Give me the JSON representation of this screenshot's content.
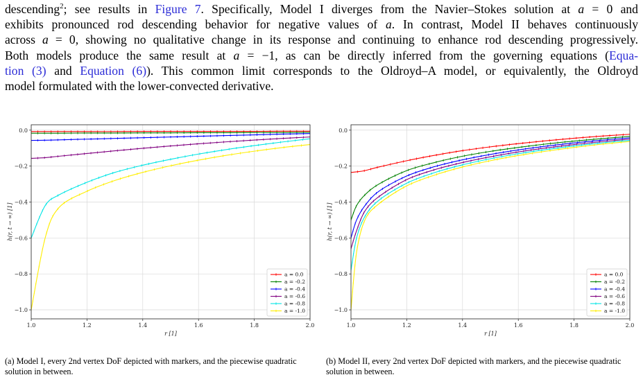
{
  "paragraph": {
    "lines": [
      [
        {
          "t": "descending"
        },
        {
          "t": "2",
          "sup": true
        },
        {
          "t": "; see results in "
        },
        {
          "t": "Figure 7",
          "link": true
        },
        {
          "t": ". Specifically, Model I diverges from the Navier–Stokes solution at "
        },
        {
          "t": "a",
          "math": true
        },
        {
          "t": " = 0 and"
        }
      ],
      [
        {
          "t": "exhibits pronounced rod descending behavior for negative values of "
        },
        {
          "t": "a",
          "math": true
        },
        {
          "t": ". In contrast, Model II behaves continuously"
        }
      ],
      [
        {
          "t": "across "
        },
        {
          "t": "a",
          "math": true
        },
        {
          "t": " = 0, showing no qualitative change in its response and continuing to enhance rod descending progressively."
        }
      ],
      [
        {
          "t": "Both models produce the same result at "
        },
        {
          "t": "a",
          "math": true
        },
        {
          "t": " = −1, as can be directly inferred from the governing equations ("
        },
        {
          "t": "Equa-",
          "link": true
        }
      ],
      [
        {
          "t": "tion (3)",
          "link": true
        },
        {
          "t": " and "
        },
        {
          "t": "Equation (6)",
          "link": true
        },
        {
          "t": "). This common limit corresponds to the Oldroyd–A model, or equivalently, the Oldroyd"
        }
      ],
      [
        {
          "t": "model formulated with the lower-convected derivative."
        }
      ]
    ]
  },
  "chart_data": [
    {
      "type": "line",
      "panel": "a",
      "title": "",
      "xlabel": "r [1]",
      "ylabel": "h(r, t → ∞) [1]",
      "xlim": [
        1.0,
        2.0
      ],
      "ylim": [
        -1.05,
        0.03
      ],
      "xticks": [
        "1.0",
        "1.2",
        "1.4",
        "1.6",
        "1.8",
        "2.0"
      ],
      "yticks": [
        "0.0",
        "−0.2",
        "−0.4",
        "−0.6",
        "−0.8",
        "−1.0"
      ],
      "grid": true,
      "legend": "bottom-right",
      "x": [
        1.0,
        1.05,
        1.1,
        1.2,
        1.3,
        1.4,
        1.5,
        1.6,
        1.7,
        1.8,
        1.9,
        2.0
      ],
      "series": [
        {
          "name": "a = 0.0",
          "color": "#ff0000",
          "values": [
            -0.008,
            -0.008,
            -0.008,
            -0.008,
            -0.008,
            -0.007,
            -0.007,
            -0.007,
            -0.007,
            -0.007,
            -0.006,
            -0.006
          ]
        },
        {
          "name": "a = -0.2",
          "color": "#008000",
          "values": [
            -0.017,
            -0.017,
            -0.017,
            -0.016,
            -0.016,
            -0.015,
            -0.015,
            -0.014,
            -0.014,
            -0.013,
            -0.013,
            -0.012
          ]
        },
        {
          "name": "a = -0.4",
          "color": "#0000ff",
          "values": [
            -0.057,
            -0.056,
            -0.054,
            -0.05,
            -0.046,
            -0.042,
            -0.038,
            -0.034,
            -0.03,
            -0.026,
            -0.022,
            -0.019
          ]
        },
        {
          "name": "a = -0.6",
          "color": "#800080",
          "values": [
            -0.157,
            -0.153,
            -0.145,
            -0.13,
            -0.115,
            -0.101,
            -0.088,
            -0.076,
            -0.065,
            -0.055,
            -0.046,
            -0.038
          ]
        },
        {
          "name": "a = -0.8",
          "color": "#00e5e5",
          "values": [
            -0.6,
            -0.42,
            -0.36,
            -0.29,
            -0.235,
            -0.195,
            -0.162,
            -0.133,
            -0.108,
            -0.086,
            -0.066,
            -0.048
          ]
        },
        {
          "name": "a = -1.0",
          "color": "#ffee00",
          "values": [
            -1.0,
            -0.6,
            -0.43,
            -0.34,
            -0.28,
            -0.235,
            -0.198,
            -0.167,
            -0.14,
            -0.117,
            -0.097,
            -0.08
          ]
        }
      ]
    },
    {
      "type": "line",
      "panel": "b",
      "title": "",
      "xlabel": "r [1]",
      "ylabel": "h(r, t → ∞) [1]",
      "xlim": [
        1.0,
        2.0
      ],
      "ylim": [
        -1.05,
        0.03
      ],
      "xticks": [
        "1.0",
        "1.2",
        "1.4",
        "1.6",
        "1.8",
        "2.0"
      ],
      "yticks": [
        "0.0",
        "−0.2",
        "−0.4",
        "−0.6",
        "−0.8",
        "−1.0"
      ],
      "grid": true,
      "legend": "bottom-right",
      "x": [
        1.0,
        1.02,
        1.05,
        1.1,
        1.2,
        1.3,
        1.4,
        1.5,
        1.6,
        1.7,
        1.8,
        1.9,
        2.0
      ],
      "series": [
        {
          "name": "a = 0.0",
          "color": "#ff0000",
          "values": [
            -0.235,
            -0.232,
            -0.225,
            -0.205,
            -0.17,
            -0.14,
            -0.114,
            -0.093,
            -0.075,
            -0.059,
            -0.045,
            -0.033,
            -0.023
          ]
        },
        {
          "name": "a = -0.2",
          "color": "#008000",
          "values": [
            -0.5,
            -0.42,
            -0.36,
            -0.3,
            -0.225,
            -0.18,
            -0.145,
            -0.118,
            -0.096,
            -0.077,
            -0.061,
            -0.047,
            -0.035
          ]
        },
        {
          "name": "a = -0.4",
          "color": "#0000ff",
          "values": [
            -0.6,
            -0.5,
            -0.42,
            -0.34,
            -0.255,
            -0.203,
            -0.165,
            -0.135,
            -0.11,
            -0.089,
            -0.071,
            -0.056,
            -0.043
          ]
        },
        {
          "name": "a = -0.6",
          "color": "#800080",
          "values": [
            -0.66,
            -0.56,
            -0.45,
            -0.37,
            -0.275,
            -0.22,
            -0.18,
            -0.148,
            -0.121,
            -0.099,
            -0.08,
            -0.064,
            -0.05
          ]
        },
        {
          "name": "a = -0.8",
          "color": "#00e5e5",
          "values": [
            -0.78,
            -0.6,
            -0.48,
            -0.39,
            -0.295,
            -0.236,
            -0.193,
            -0.159,
            -0.131,
            -0.108,
            -0.088,
            -0.071,
            -0.057
          ]
        },
        {
          "name": "a = -1.0",
          "color": "#ffee00",
          "values": [
            -1.0,
            -0.68,
            -0.5,
            -0.41,
            -0.31,
            -0.25,
            -0.205,
            -0.17,
            -0.141,
            -0.117,
            -0.096,
            -0.078,
            -0.063
          ]
        }
      ]
    }
  ],
  "captions": {
    "a": "(a) Model I, every 2nd vertex DoF depicted with markers, and the piecewise quadratic solution in between.",
    "b": "(b) Model II, every 2nd vertex DoF depicted with markers, and the piecewise quadratic solution in between."
  }
}
